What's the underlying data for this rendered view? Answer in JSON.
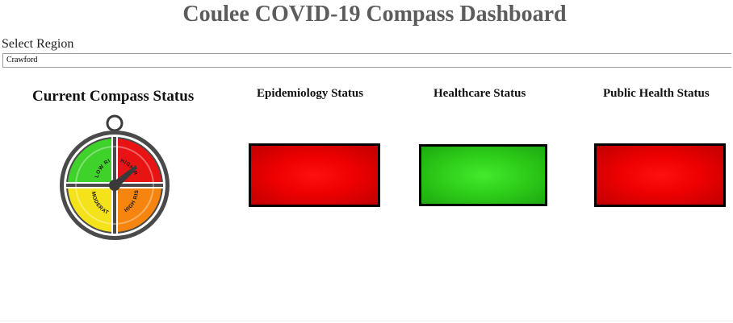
{
  "header": {
    "title": "Coulee COVID-19 Compass Dashboard"
  },
  "region": {
    "label": "Select Region",
    "selected": "Crawford"
  },
  "compass": {
    "title": "Current Compass Status",
    "quadrants": [
      {
        "label": "LOW RISK",
        "color": "#3fd22a"
      },
      {
        "label": "HIGH RISK",
        "color": "#e81414"
      },
      {
        "label": "MODERATE RISK",
        "color": "#f4e21a"
      },
      {
        "label": "HIGH RISK",
        "color": "#f5850f"
      }
    ],
    "needle_icon": "compass-needle-icon"
  },
  "statuses": {
    "epidemiology": {
      "title": "Epidemiology Status",
      "color": "#ee0000"
    },
    "healthcare": {
      "title": "Healthcare Status",
      "color": "#2fd01a"
    },
    "public_health": {
      "title": "Public Health Status",
      "color": "#ee0000"
    }
  }
}
